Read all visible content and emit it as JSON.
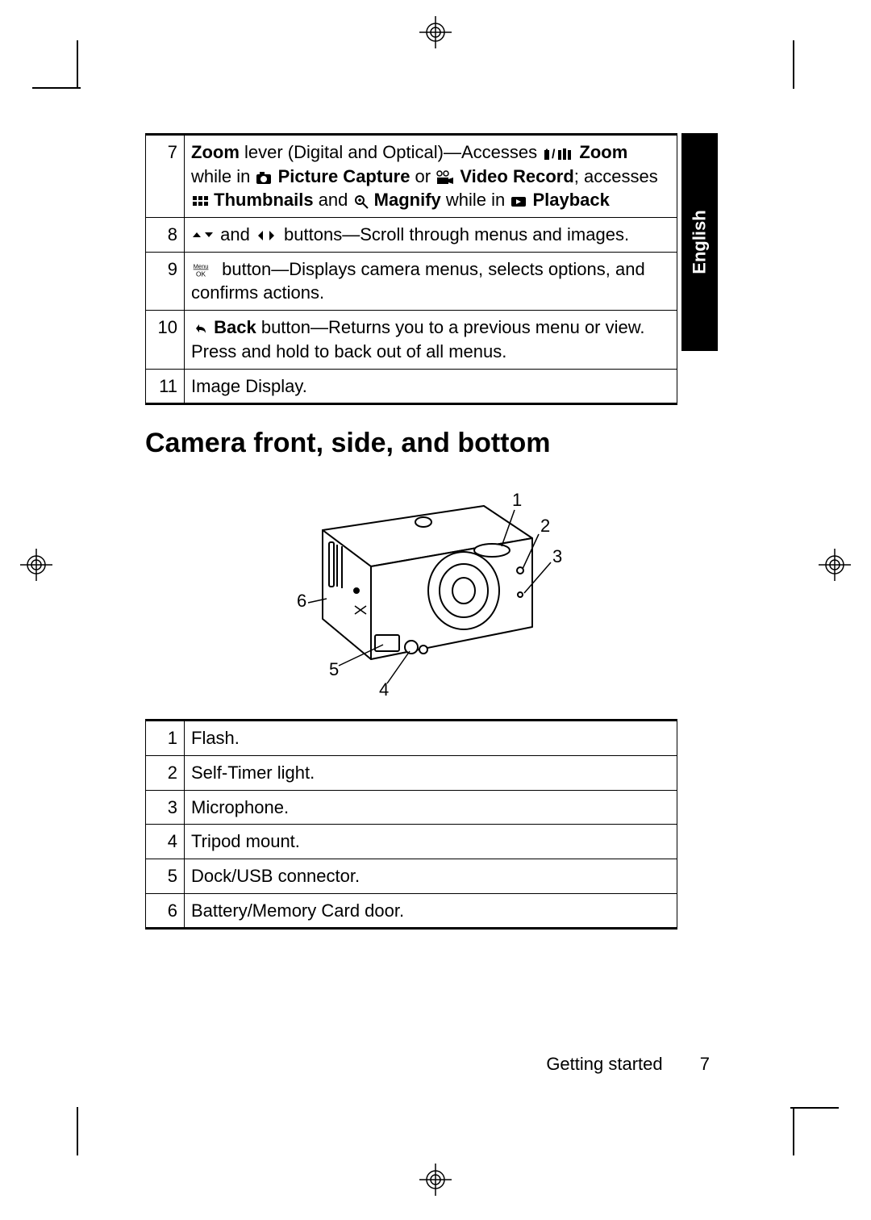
{
  "language_tab": "English",
  "table1": {
    "rows": [
      {
        "n": "7",
        "html": "<span class=\"bold\">Zoom</span> lever (Digital and Optical)—Accesses <svg class=\"icon-inline\" width=\"40\" height=\"20\" viewBox=\"0 0 40 20\"><rect x=\"3\" y=\"6\" width=\"6\" height=\"12\" fill=\"#000\"/><path d=\"M6 4 L3 8 L9 8 Z\" fill=\"#000\"/><text x=\"12\" y=\"16\" font-size=\"16\" font-weight=\"bold\">/</text><rect x=\"20\" y=\"6\" width=\"4\" height=\"12\" fill=\"#000\"/><rect x=\"26\" y=\"4\" width=\"4\" height=\"14\" fill=\"#000\"/><rect x=\"32\" y=\"6\" width=\"4\" height=\"12\" fill=\"#000\"/></svg> <span class=\"bold\">Zoom</span> while in <svg class=\"icon-inline\" width=\"22\" height=\"20\" viewBox=\"0 0 22 20\"><rect x=\"2\" y=\"6\" width=\"18\" height=\"12\" rx=\"2\" fill=\"#000\"/><rect x=\"6\" y=\"3\" width=\"6\" height=\"4\" fill=\"#000\"/><circle cx=\"11\" cy=\"12\" r=\"4\" fill=\"#fff\"/></svg> <span class=\"bold\">Picture Capture</span> or <svg class=\"icon-inline\" width=\"24\" height=\"20\" viewBox=\"0 0 24 20\"><circle cx=\"5\" cy=\"5\" r=\"3\" fill=\"none\" stroke=\"#000\" stroke-width=\"1.5\"/><circle cx=\"13\" cy=\"5\" r=\"3\" fill=\"none\" stroke=\"#000\" stroke-width=\"1.5\"/><rect x=\"2\" y=\"10\" width=\"14\" height=\"8\" fill=\"#000\"/><path d=\"M16 12 L22 10 L22 18 L16 16 Z\" fill=\"#000\"/></svg> <span class=\"bold\">Video Record</span>; accesses <svg class=\"icon-inline\" width=\"22\" height=\"20\" viewBox=\"0 0 22 20\"><rect x=\"2\" y=\"3\" width=\"5\" height=\"5\" fill=\"#000\"/><rect x=\"9\" y=\"3\" width=\"5\" height=\"5\" fill=\"#000\"/><rect x=\"16\" y=\"3\" width=\"5\" height=\"5\" fill=\"#000\"/><rect x=\"2\" y=\"10\" width=\"5\" height=\"5\" fill=\"#000\"/><rect x=\"9\" y=\"10\" width=\"5\" height=\"5\" fill=\"#000\"/><rect x=\"16\" y=\"10\" width=\"5\" height=\"5\" fill=\"#000\"/></svg> <span class=\"bold\">Thumbnails</span> and <svg class=\"icon-inline\" width=\"20\" height=\"20\" viewBox=\"0 0 20 20\"><circle cx=\"8\" cy=\"8\" r=\"5\" fill=\"none\" stroke=\"#000\" stroke-width=\"2\"/><line x1=\"6\" y1=\"8\" x2=\"10\" y2=\"8\" stroke=\"#000\" stroke-width=\"1.5\"/><line x1=\"8\" y1=\"6\" x2=\"8\" y2=\"10\" stroke=\"#000\" stroke-width=\"1.5\"/><line x1=\"12\" y1=\"12\" x2=\"18\" y2=\"18\" stroke=\"#000\" stroke-width=\"2\"/></svg> <span class=\"bold\">Magnify</span> while in <svg class=\"icon-inline\" width=\"22\" height=\"20\" viewBox=\"0 0 22 20\"><rect x=\"2\" y=\"4\" width=\"18\" height=\"12\" rx=\"2\" fill=\"#000\"/><path d=\"M8 7 L14 10 L8 13 Z\" fill=\"#fff\"/></svg> <span class=\"bold\">Playback</span>"
      },
      {
        "n": "8",
        "html": "<svg class=\"icon-inline\" width=\"30\" height=\"20\" viewBox=\"0 0 30 20\"><path d=\"M7 12 L2 6 L12 6 Z\" fill=\"#000\" transform=\"rotate(180 7 9)\"/><path d=\"M22 6 L17 12 L27 12 Z\" fill=\"#000\" transform=\"rotate(180 22 9)\"/></svg> and <svg class=\"icon-inline\" width=\"30\" height=\"20\" viewBox=\"0 0 30 20\"><path d=\"M10 4 L4 10 L10 16 Z\" fill=\"#000\"/><path d=\"M18 4 L24 10 L18 16 Z\" fill=\"#000\"/></svg> buttons—Scroll through menus and images."
      },
      {
        "n": "9",
        "html": "<svg class=\"icon-inline\" width=\"32\" height=\"24\" viewBox=\"0 0 32 24\"><text x=\"0\" y=\"9\" font-size=\"9\" text-decoration=\"underline\">Menu</text><text x=\"4\" y=\"21\" font-size=\"10\">OK</text></svg> button—Displays camera menus, selects options, and confirms actions."
      },
      {
        "n": "10",
        "html": "<svg class=\"icon-inline\" width=\"22\" height=\"20\" viewBox=\"0 0 22 20\"><path d=\"M6 10 L10 5 L10 8 C16 8 18 11 18 16 C17 13 14 12 10 12 L10 15 Z\" fill=\"#000\"/></svg> <span class=\"bold\">Back</span> button—Returns you to a previous menu or view. Press and hold to back out of all menus."
      },
      {
        "n": "11",
        "html": "Image Display."
      }
    ]
  },
  "section_title": "Camera front, side, and bottom",
  "callouts": [
    "1",
    "2",
    "3",
    "4",
    "5",
    "6"
  ],
  "table2": {
    "rows": [
      {
        "n": "1",
        "text": "Flash."
      },
      {
        "n": "2",
        "text": "Self-Timer light."
      },
      {
        "n": "3",
        "text": "Microphone."
      },
      {
        "n": "4",
        "text": "Tripod mount."
      },
      {
        "n": "5",
        "text": "Dock/USB connector."
      },
      {
        "n": "6",
        "text": "Battery/Memory Card door."
      }
    ]
  },
  "footer_text": "Getting started",
  "page_number": "7"
}
